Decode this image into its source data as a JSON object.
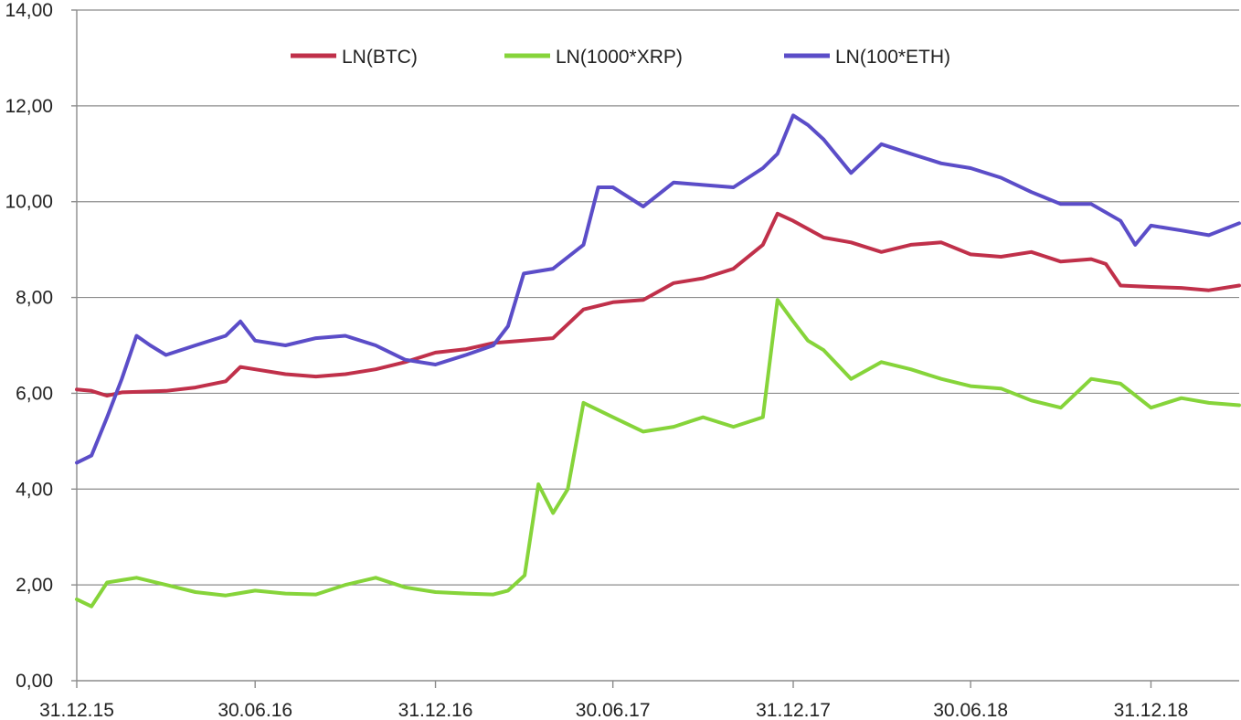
{
  "chart_data": {
    "type": "line",
    "title": "",
    "xlabel": "",
    "ylabel": "",
    "x_range": [
      "31.12.15",
      "31.03.19"
    ],
    "ylim": [
      0,
      14
    ],
    "y_ticks": [
      "0,00",
      "2,00",
      "4,00",
      "6,00",
      "8,00",
      "10,00",
      "12,00",
      "14,00"
    ],
    "x_ticks": [
      "31.12.15",
      "30.06.16",
      "31.12.16",
      "30.06.17",
      "31.12.17",
      "30.06.18",
      "31.12.18"
    ],
    "grid": "horizontal",
    "legend_position": "top",
    "colors": {
      "btc": "#c0304a",
      "xrp": "#86d43a",
      "eth": "#5b4dc8",
      "grid": "#8c8c8c"
    },
    "series": [
      {
        "name": "LN(BTC)",
        "x": [
          "31.12.15",
          "15.01.16",
          "31.01.16",
          "15.02.16",
          "01.03.16",
          "31.03.16",
          "30.04.16",
          "31.05.16",
          "15.06.16",
          "30.06.16",
          "31.07.16",
          "31.08.16",
          "30.09.16",
          "31.10.16",
          "30.11.16",
          "31.12.16",
          "31.01.17",
          "28.02.17",
          "31.03.17",
          "30.04.17",
          "31.05.17",
          "30.06.17",
          "31.07.17",
          "31.08.17",
          "30.09.17",
          "31.10.17",
          "30.11.17",
          "15.12.17",
          "31.12.17",
          "31.01.18",
          "28.02.18",
          "31.03.18",
          "30.04.18",
          "31.05.18",
          "30.06.18",
          "31.07.18",
          "31.08.18",
          "30.09.18",
          "31.10.18",
          "15.11.18",
          "30.11.18",
          "31.12.18",
          "31.01.19",
          "28.02.19",
          "31.03.19"
        ],
        "values": [
          6.08,
          6.05,
          5.95,
          6.02,
          6.03,
          6.05,
          6.12,
          6.25,
          6.55,
          6.5,
          6.4,
          6.35,
          6.4,
          6.5,
          6.65,
          6.85,
          6.92,
          7.05,
          7.1,
          7.15,
          7.75,
          7.9,
          7.95,
          8.3,
          8.4,
          8.6,
          9.1,
          9.75,
          9.6,
          9.25,
          9.15,
          8.95,
          9.1,
          9.15,
          8.9,
          8.85,
          8.95,
          8.75,
          8.8,
          8.7,
          8.25,
          8.22,
          8.2,
          8.15,
          8.25
        ]
      },
      {
        "name": "LN(1000*XRP)",
        "x": [
          "31.12.15",
          "15.01.16",
          "31.01.16",
          "15.02.16",
          "01.03.16",
          "31.03.16",
          "30.04.16",
          "31.05.16",
          "30.06.16",
          "31.07.16",
          "31.08.16",
          "30.09.16",
          "31.10.16",
          "30.11.16",
          "31.12.16",
          "31.01.17",
          "28.02.17",
          "15.03.17",
          "01.04.17",
          "15.04.17",
          "30.04.17",
          "15.05.17",
          "31.05.17",
          "30.06.17",
          "31.07.17",
          "31.08.17",
          "30.09.17",
          "31.10.17",
          "30.11.17",
          "15.12.17",
          "31.12.17",
          "15.01.18",
          "31.01.18",
          "28.02.18",
          "31.03.18",
          "30.04.18",
          "31.05.18",
          "30.06.18",
          "31.07.18",
          "31.08.18",
          "30.09.18",
          "31.10.18",
          "30.11.18",
          "31.12.18",
          "31.01.19",
          "28.02.19",
          "31.03.19"
        ],
        "values": [
          1.7,
          1.55,
          2.05,
          2.1,
          2.15,
          2.0,
          1.85,
          1.78,
          1.88,
          1.82,
          1.8,
          2.0,
          2.15,
          1.95,
          1.85,
          1.82,
          1.8,
          1.88,
          2.2,
          4.1,
          3.5,
          4.0,
          5.8,
          5.5,
          5.2,
          5.3,
          5.5,
          5.3,
          5.5,
          7.95,
          7.5,
          7.1,
          6.9,
          6.3,
          6.65,
          6.5,
          6.3,
          6.15,
          6.1,
          5.85,
          5.7,
          6.3,
          6.2,
          5.7,
          5.9,
          5.8,
          5.75
        ]
      },
      {
        "name": "LN(100*ETH)",
        "x": [
          "31.12.15",
          "15.01.16",
          "31.01.16",
          "15.02.16",
          "01.03.16",
          "15.03.16",
          "31.03.16",
          "30.04.16",
          "31.05.16",
          "15.06.16",
          "30.06.16",
          "31.07.16",
          "31.08.16",
          "30.09.16",
          "31.10.16",
          "30.11.16",
          "31.12.16",
          "31.01.17",
          "28.02.17",
          "15.03.17",
          "31.03.17",
          "30.04.17",
          "31.05.17",
          "15.06.17",
          "30.06.17",
          "31.07.17",
          "31.08.17",
          "30.09.17",
          "31.10.17",
          "30.11.17",
          "15.12.17",
          "31.12.17",
          "15.01.18",
          "31.01.18",
          "28.02.18",
          "31.03.18",
          "30.04.18",
          "31.05.18",
          "30.06.18",
          "31.07.18",
          "31.08.18",
          "30.09.18",
          "31.10.18",
          "30.11.18",
          "15.12.18",
          "31.12.18",
          "31.01.19",
          "28.02.19",
          "31.03.19"
        ],
        "values": [
          4.55,
          4.7,
          5.5,
          6.3,
          7.2,
          7.0,
          6.8,
          7.0,
          7.2,
          7.5,
          7.1,
          7.0,
          7.15,
          7.2,
          7.0,
          6.7,
          6.6,
          6.8,
          7.0,
          7.4,
          8.5,
          8.6,
          9.1,
          10.3,
          10.3,
          9.9,
          10.4,
          10.35,
          10.3,
          10.7,
          11.0,
          11.8,
          11.6,
          11.3,
          10.6,
          11.2,
          11.0,
          10.8,
          10.7,
          10.5,
          10.2,
          9.95,
          9.95,
          9.6,
          9.1,
          9.5,
          9.4,
          9.3,
          9.55
        ]
      }
    ]
  }
}
